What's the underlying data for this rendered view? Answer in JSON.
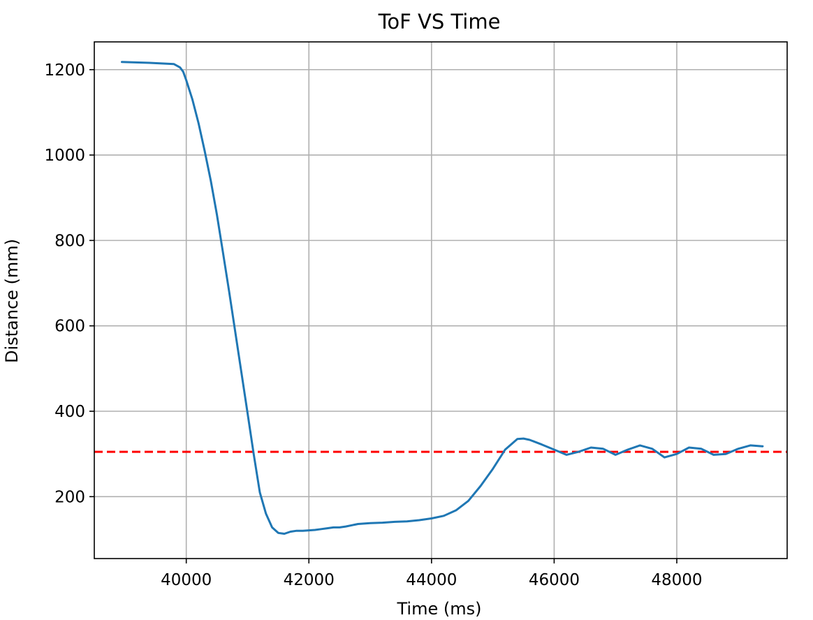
{
  "chart_data": {
    "type": "line",
    "title": "ToF VS Time",
    "xlabel": "Time (ms)",
    "ylabel": "Distance (mm)",
    "xlim": [
      38500,
      49800
    ],
    "ylim": [
      55,
      1265
    ],
    "xticks": [
      40000,
      42000,
      44000,
      46000,
      48000
    ],
    "yticks": [
      200,
      400,
      600,
      800,
      1000,
      1200
    ],
    "grid": true,
    "series": [
      {
        "color": "#1f77b4",
        "x": [
          38950,
          39400,
          39800,
          39900,
          39950,
          40000,
          40100,
          40200,
          40300,
          40400,
          40500,
          40600,
          40700,
          40800,
          40900,
          41000,
          41100,
          41200,
          41300,
          41400,
          41500,
          41600,
          41700,
          41800,
          41900,
          42000,
          42100,
          42200,
          42300,
          42400,
          42500,
          42600,
          42700,
          42800,
          42900,
          43000,
          43200,
          43400,
          43600,
          43800,
          44000,
          44200,
          44400,
          44600,
          44800,
          45000,
          45200,
          45400,
          45500,
          45600,
          45800,
          46000,
          46200,
          46400,
          46600,
          46800,
          47000,
          47200,
          47400,
          47600,
          47800,
          48000,
          48200,
          48400,
          48600,
          48800,
          49000,
          49200,
          49400
        ],
        "y": [
          1218,
          1216,
          1213,
          1205,
          1195,
          1175,
          1130,
          1075,
          1010,
          940,
          860,
          770,
          680,
          585,
          490,
          395,
          300,
          210,
          160,
          128,
          115,
          113,
          118,
          120,
          120,
          121,
          122,
          124,
          126,
          128,
          128,
          130,
          133,
          136,
          137,
          138,
          139,
          141,
          142,
          145,
          149,
          155,
          168,
          190,
          225,
          265,
          310,
          335,
          336,
          333,
          322,
          310,
          298,
          305,
          315,
          312,
          298,
          310,
          320,
          312,
          292,
          300,
          315,
          312,
          298,
          300,
          312,
          320,
          318
        ]
      }
    ],
    "reference_line": {
      "y": 305,
      "color": "#ff0000",
      "style": "dashed"
    }
  }
}
